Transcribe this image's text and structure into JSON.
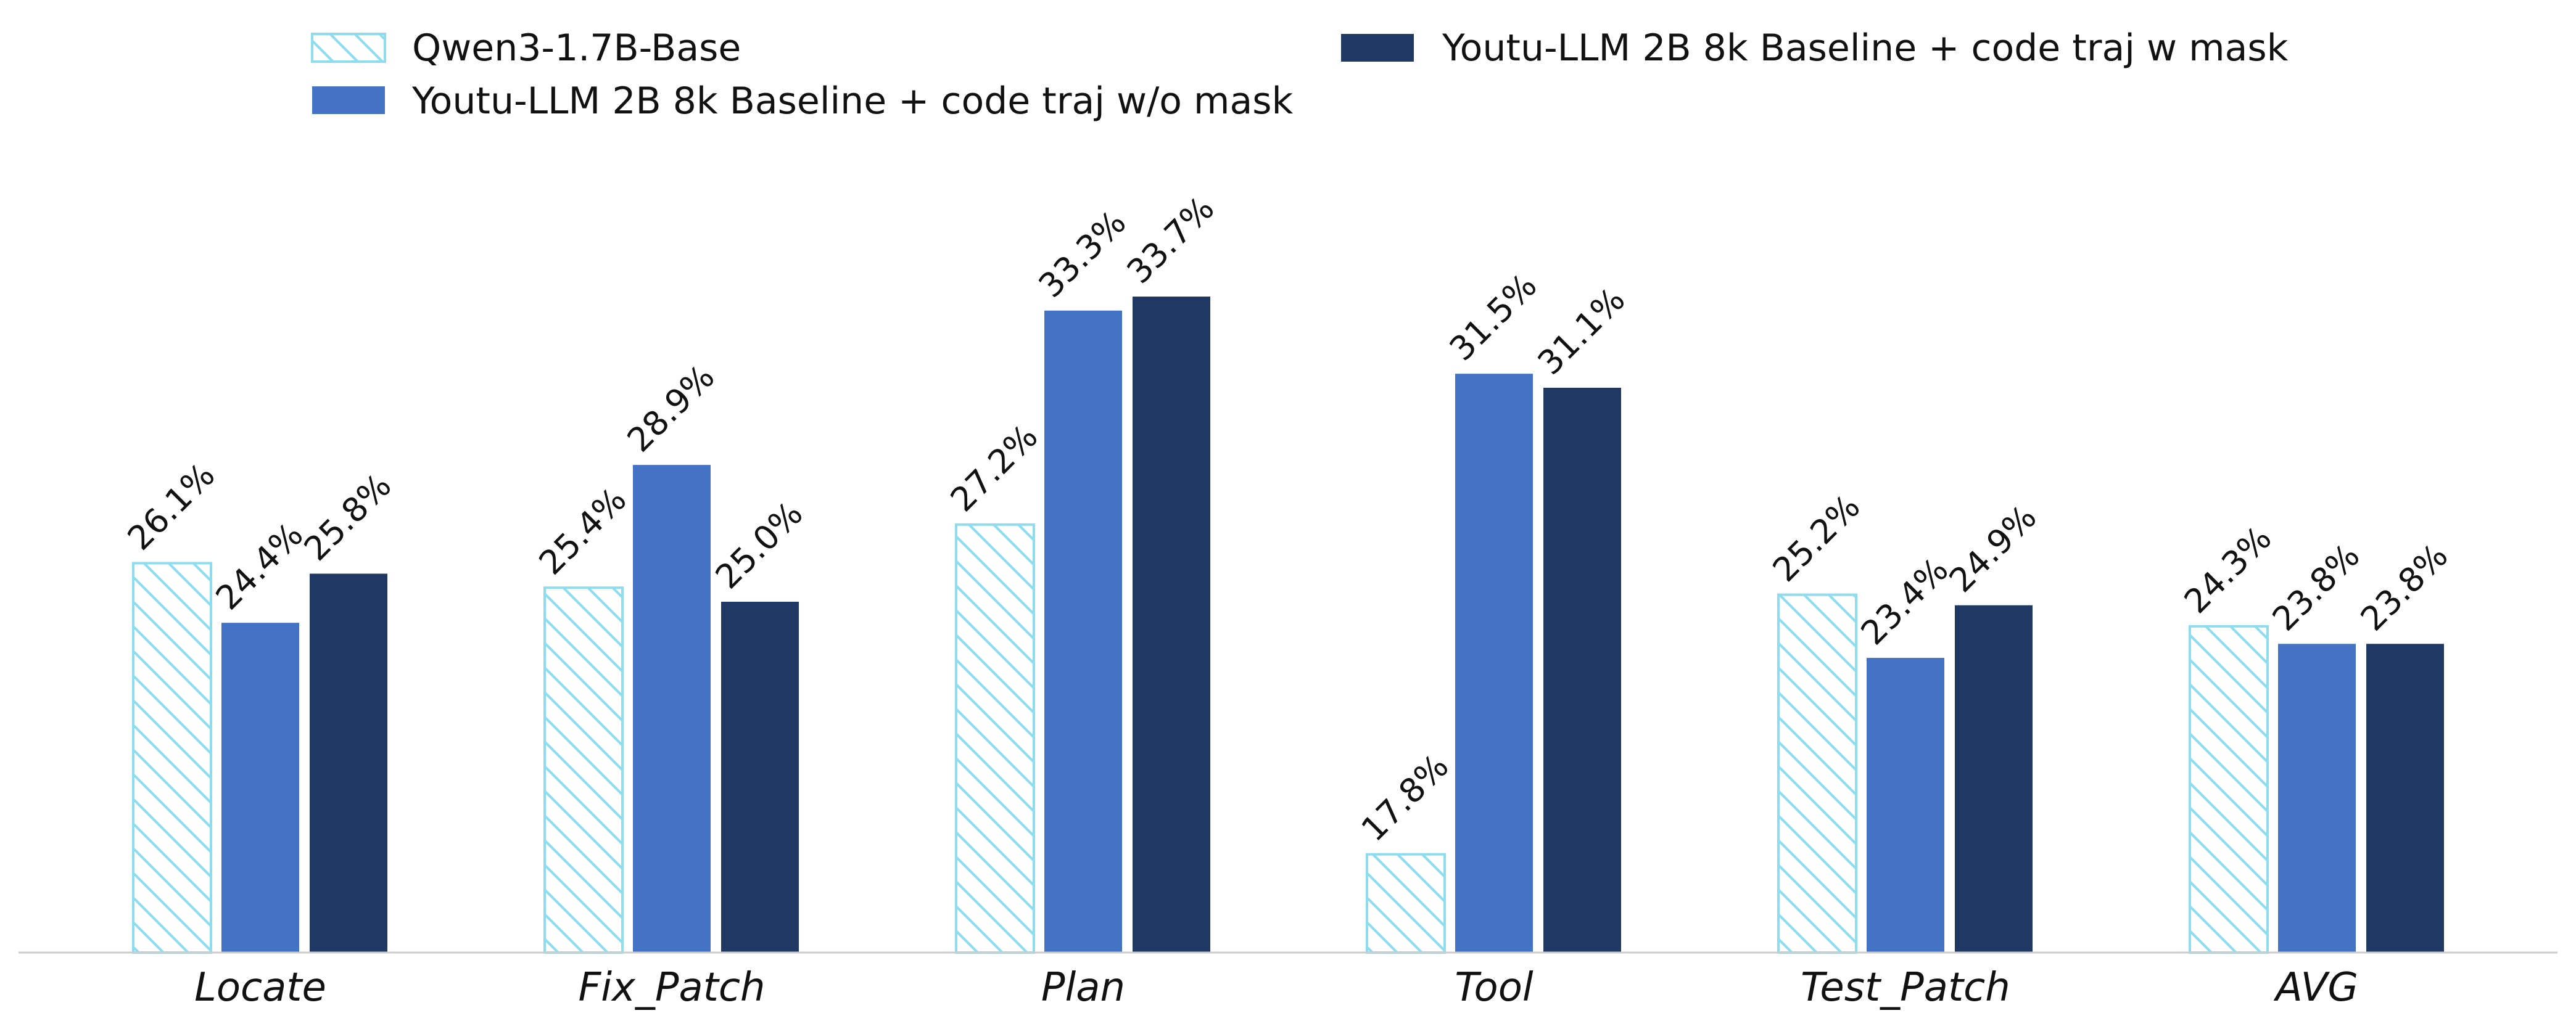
{
  "chart_data": {
    "type": "bar",
    "title": "",
    "xlabel": "",
    "ylabel": "",
    "categories": [
      "Locate",
      "Fix_Patch",
      "Plan",
      "Tool",
      "Test_Patch",
      "AVG"
    ],
    "series": [
      {
        "name": "Qwen3-1.7B-Base",
        "values": [
          26.1,
          25.4,
          27.2,
          17.8,
          25.2,
          24.3
        ],
        "labels": [
          "26.1%",
          "25.4%",
          "27.2%",
          "17.8%",
          "25.2%",
          "24.3%"
        ],
        "color": "#8fdcef",
        "style": "hatched"
      },
      {
        "name": "Youtu-LLM 2B 8k Baseline + code traj w/o mask",
        "values": [
          24.4,
          28.9,
          33.3,
          31.5,
          23.4,
          23.8
        ],
        "labels": [
          "24.4%",
          "28.9%",
          "33.3%",
          "31.5%",
          "23.4%",
          "23.8%"
        ],
        "color": "#4472c4",
        "style": "solid"
      },
      {
        "name": "Youtu-LLM 2B 8k Baseline + code traj w mask",
        "values": [
          25.8,
          25.0,
          33.7,
          31.1,
          24.9,
          23.8
        ],
        "labels": [
          "25.8%",
          "25.0%",
          "33.7%",
          "31.1%",
          "24.9%",
          "23.8%"
        ],
        "color": "#203864",
        "style": "solid"
      }
    ],
    "ylim": [
      15.0,
      36.5
    ],
    "legend_position": "top",
    "grid": false
  }
}
